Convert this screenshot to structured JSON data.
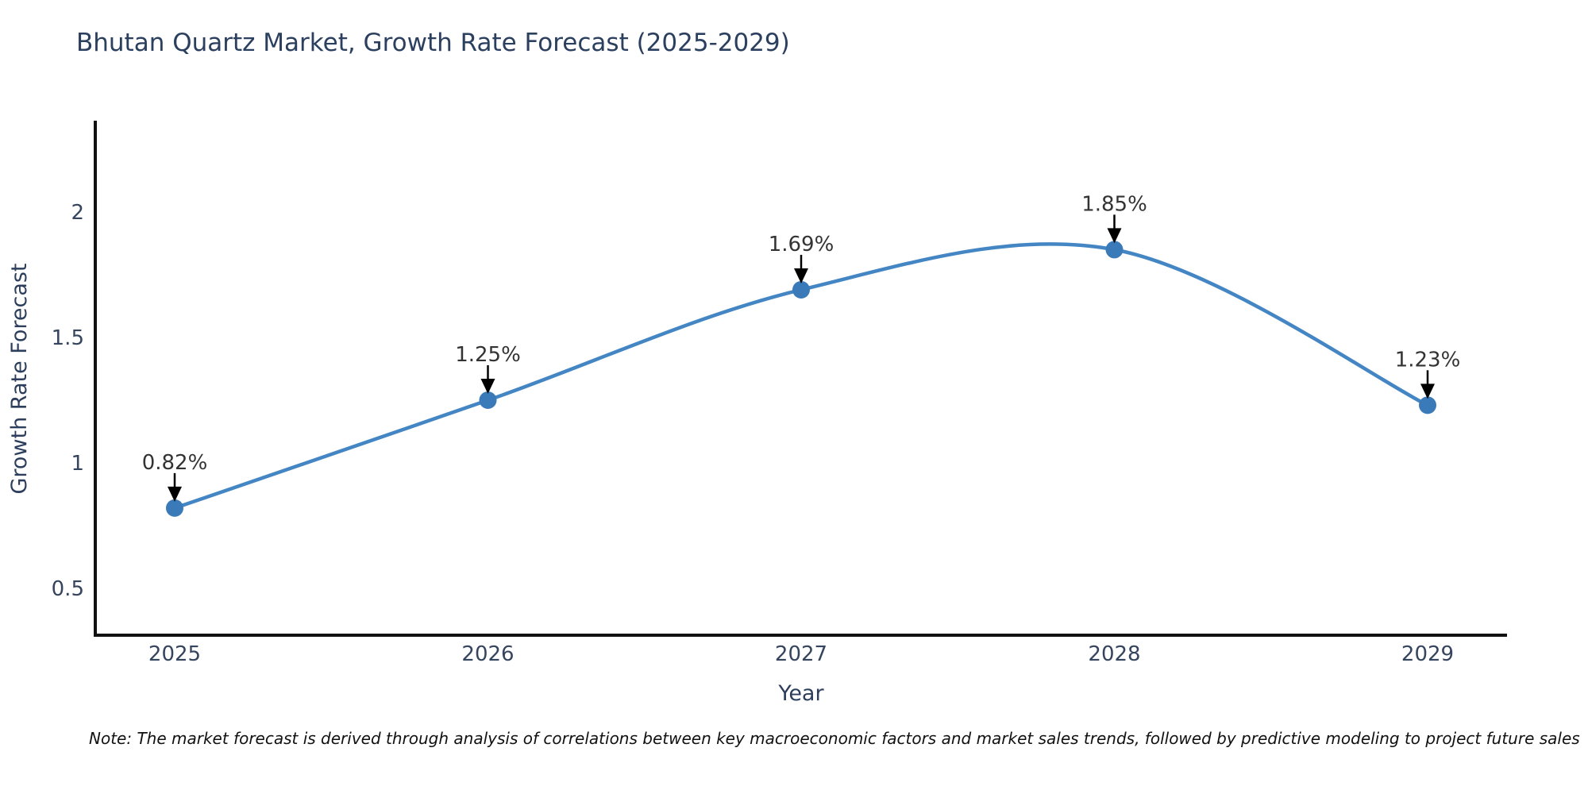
{
  "title": "Bhutan Quartz Market, Growth Rate Forecast (2025-2029)",
  "note": "Note: The market forecast is derived through analysis of correlations between key macroeconomic factors and market sales trends, followed by predictive modeling to project future sales",
  "chart_data": {
    "type": "line",
    "title": "Bhutan Quartz Market, Growth Rate Forecast (2025-2029)",
    "xlabel": "Year",
    "ylabel": "Growth Rate Forecast",
    "categories": [
      "2025",
      "2026",
      "2027",
      "2028",
      "2029"
    ],
    "series": [
      {
        "name": "Growth Rate Forecast",
        "values": [
          0.82,
          1.25,
          1.69,
          1.85,
          1.23
        ]
      }
    ],
    "point_labels": [
      "0.82%",
      "1.25%",
      "1.69%",
      "1.85%",
      "1.23%"
    ],
    "yticks": [
      0.5,
      1,
      1.5,
      2
    ],
    "ylim": [
      0.31,
      2.35
    ],
    "line_shape": "spline",
    "grid": false,
    "legend": "none",
    "markers": true,
    "annotation_arrows": true,
    "colors": {
      "line": "#4486c3",
      "marker": "#3b7ab8",
      "arrow": "#000000",
      "axis": "#111111",
      "tick_label": "#36455e",
      "title": "#2b3f5e",
      "annotation": "#333333"
    }
  }
}
